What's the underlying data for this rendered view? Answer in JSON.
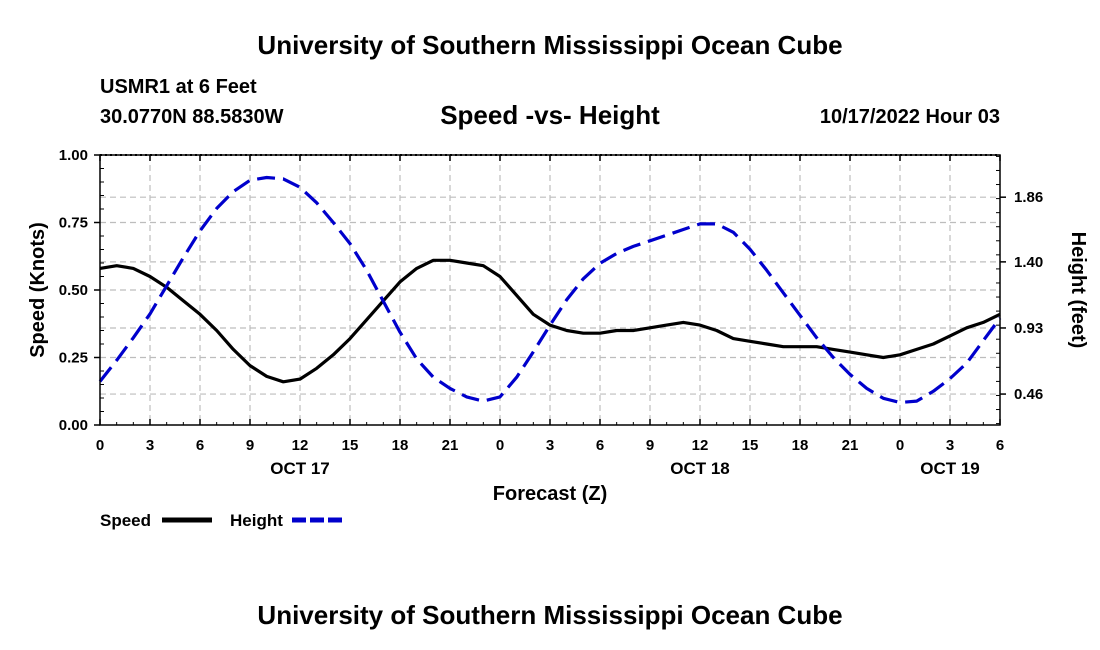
{
  "header": {
    "title": "University of Southern Mississippi Ocean Cube",
    "station": "USMR1 at 6 Feet",
    "coordinates": "30.0770N  88.5830W",
    "subtitle": "Speed -vs- Height",
    "timestamp": "10/17/2022 Hour 03"
  },
  "footer": {
    "title": "University of Southern Mississippi Ocean Cube"
  },
  "chart_data": {
    "type": "line",
    "title": "Speed -vs- Height",
    "xlabel": "Forecast (Z)",
    "ylabel": "Speed (Knots)",
    "y2label": "Height (feet)",
    "xlim": [
      0,
      54
    ],
    "ylim": [
      0,
      1
    ],
    "y2lim": [
      0.24,
      2.16
    ],
    "x_ticks": [
      0,
      3,
      6,
      9,
      12,
      15,
      18,
      21,
      24,
      27,
      30,
      33,
      36,
      39,
      42,
      45,
      48,
      51,
      54
    ],
    "x_tick_labels": [
      "0",
      "3",
      "6",
      "9",
      "12",
      "15",
      "18",
      "21",
      "0",
      "3",
      "6",
      "9",
      "12",
      "15",
      "18",
      "21",
      "0",
      "3",
      "6"
    ],
    "date_labels": [
      {
        "x": 12,
        "label": "OCT 17"
      },
      {
        "x": 36,
        "label": "OCT 18"
      },
      {
        "x": 51,
        "label": "OCT 19"
      }
    ],
    "y_ticks": [
      0,
      0.25,
      0.5,
      0.75,
      1.0
    ],
    "y_tick_labels": [
      "0.00",
      "0.25",
      "0.50",
      "0.75",
      "1.00"
    ],
    "y2_ticks": [
      0.46,
      0.93,
      1.4,
      1.86
    ],
    "y2_tick_labels": [
      "0.46",
      "0.93",
      "1.40",
      "1.86"
    ],
    "grid": true,
    "legend": {
      "position": "bottom-left"
    },
    "series": [
      {
        "name": "Speed",
        "color": "#000000",
        "dash": "solid",
        "axis": "left",
        "x": [
          0,
          1,
          2,
          3,
          4,
          5,
          6,
          7,
          8,
          9,
          10,
          11,
          12,
          13,
          14,
          15,
          16,
          17,
          18,
          19,
          20,
          21,
          22,
          23,
          24,
          25,
          26,
          27,
          28,
          29,
          30,
          31,
          32,
          33,
          34,
          35,
          36,
          37,
          38,
          39,
          40,
          41,
          42,
          43,
          44,
          45,
          46,
          47,
          48,
          49,
          50,
          51,
          52,
          53,
          54
        ],
        "values": [
          0.58,
          0.59,
          0.58,
          0.55,
          0.51,
          0.46,
          0.41,
          0.35,
          0.28,
          0.22,
          0.18,
          0.16,
          0.17,
          0.21,
          0.26,
          0.32,
          0.39,
          0.46,
          0.53,
          0.58,
          0.61,
          0.61,
          0.6,
          0.59,
          0.55,
          0.48,
          0.41,
          0.37,
          0.35,
          0.34,
          0.34,
          0.35,
          0.35,
          0.36,
          0.37,
          0.38,
          0.37,
          0.35,
          0.32,
          0.31,
          0.3,
          0.29,
          0.29,
          0.29,
          0.28,
          0.27,
          0.26,
          0.25,
          0.26,
          0.28,
          0.3,
          0.33,
          0.36,
          0.38,
          0.41
        ]
      },
      {
        "name": "Height",
        "color": "#0000cc",
        "dash": "dashed",
        "axis": "right",
        "x": [
          0,
          1,
          2,
          3,
          4,
          5,
          6,
          7,
          8,
          9,
          10,
          11,
          12,
          13,
          14,
          15,
          16,
          17,
          18,
          19,
          20,
          21,
          22,
          23,
          24,
          25,
          26,
          27,
          28,
          29,
          30,
          31,
          32,
          33,
          34,
          35,
          36,
          37,
          38,
          39,
          40,
          41,
          42,
          43,
          44,
          45,
          46,
          47,
          48,
          49,
          50,
          51,
          52,
          53,
          54
        ],
        "values": [
          0.55,
          0.7,
          0.86,
          1.03,
          1.23,
          1.43,
          1.62,
          1.78,
          1.9,
          1.98,
          2.0,
          1.99,
          1.93,
          1.82,
          1.68,
          1.53,
          1.34,
          1.12,
          0.9,
          0.71,
          0.58,
          0.5,
          0.44,
          0.41,
          0.44,
          0.58,
          0.76,
          0.95,
          1.13,
          1.28,
          1.39,
          1.46,
          1.51,
          1.55,
          1.59,
          1.63,
          1.67,
          1.67,
          1.61,
          1.49,
          1.34,
          1.18,
          1.02,
          0.86,
          0.72,
          0.6,
          0.5,
          0.43,
          0.4,
          0.41,
          0.48,
          0.57,
          0.68,
          0.84,
          1.0
        ]
      }
    ]
  }
}
